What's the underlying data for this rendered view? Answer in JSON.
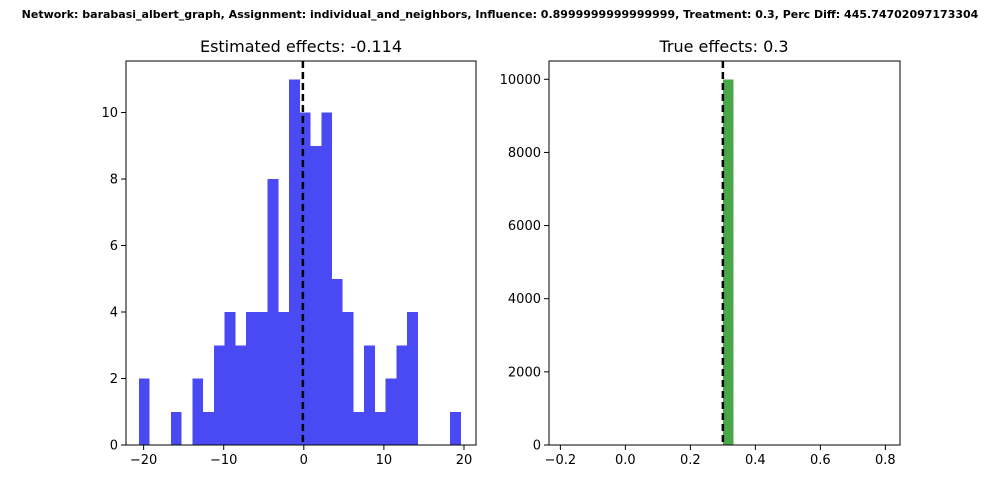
{
  "figure": {
    "suptitle": "Network: barabasi_albert_graph, Assignment: individual_and_neighbors, Influence: 0.8999999999999999, Treatment: 0.3, Perc Diff: 445.74702097173304"
  },
  "chart_data": [
    {
      "type": "bar",
      "title": "Estimated effects: -0.114",
      "xlabel": "",
      "ylabel": "",
      "color": "#4a4af5",
      "xlim": [
        -22.2,
        21.5
      ],
      "ylim": [
        0,
        11.55
      ],
      "xticks": [
        -20,
        -10,
        0,
        10,
        20
      ],
      "yticks": [
        0,
        2,
        4,
        6,
        8,
        10
      ],
      "xtick_labels": [
        "−20",
        "−10",
        "0",
        "10",
        "20"
      ],
      "ytick_labels": [
        "0",
        "2",
        "4",
        "6",
        "8",
        "10"
      ],
      "bin_start": -20.6,
      "bin_width": 1.34,
      "counts": [
        2,
        0,
        0,
        1,
        0,
        2,
        1,
        3,
        4,
        3,
        4,
        4,
        8,
        4,
        11,
        10,
        9,
        10,
        5,
        4,
        1,
        3,
        1,
        2,
        3,
        4,
        0,
        0,
        0,
        1
      ],
      "vline": {
        "x": -0.114,
        "style": "dashed",
        "color": "#000000"
      },
      "grid": false,
      "legend": "none"
    },
    {
      "type": "bar",
      "title": "True effects: 0.3",
      "xlabel": "",
      "ylabel": "",
      "color": "#4aa84a",
      "xlim": [
        -0.235,
        0.845
      ],
      "ylim": [
        0,
        10500
      ],
      "xticks": [
        -0.2,
        0.0,
        0.2,
        0.4,
        0.6,
        0.8
      ],
      "yticks": [
        0,
        2000,
        4000,
        6000,
        8000,
        10000
      ],
      "xtick_labels": [
        "−0.2",
        "0.0",
        "0.2",
        "0.4",
        "0.6",
        "0.8"
      ],
      "ytick_labels": [
        "0",
        "2000",
        "4000",
        "6000",
        "8000",
        "10000"
      ],
      "bin_start": 0.3,
      "bin_width": 0.033,
      "counts": [
        10000
      ],
      "vline": {
        "x": 0.3,
        "style": "dashed",
        "color": "#000000"
      },
      "grid": false,
      "legend": "none"
    }
  ]
}
